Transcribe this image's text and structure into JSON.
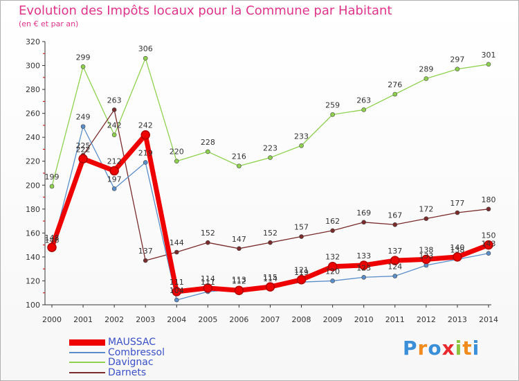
{
  "title": "Evolution des Impôts locaux pour la Commune par Habitant",
  "subtitle": "(en € et par an)",
  "logo_text": "Proxiti",
  "chart_data": {
    "type": "line",
    "x": [
      "2000",
      "2001",
      "2002",
      "2003",
      "2004",
      "2005",
      "2006",
      "2007",
      "2008",
      "2009",
      "2010",
      "2011",
      "2012",
      "2013",
      "2014"
    ],
    "ylim": [
      100,
      320
    ],
    "yticks": [
      100,
      120,
      140,
      160,
      180,
      200,
      220,
      240,
      260,
      280,
      300,
      320
    ],
    "grid": false,
    "legend_position": "bottom-left",
    "series": [
      {
        "name": "MAUSSAC",
        "color": "#ee0000",
        "values": [
          148,
          222,
          212,
          242,
          111,
          114,
          112,
          115,
          121,
          132,
          133,
          137,
          138,
          140,
          150
        ],
        "labels": [
          "148",
          "222",
          "212",
          "242",
          "111",
          "114",
          "112",
          "115",
          "121",
          "132",
          "133",
          "137",
          "138",
          "140",
          "150"
        ]
      },
      {
        "name": "Combressol",
        "color": "#5b8ec9",
        "values": [
          146,
          249,
          197,
          219,
          104,
          111,
          113,
          114,
          119,
          120,
          123,
          124,
          133,
          138,
          143
        ],
        "labels": [
          "146",
          "249",
          "197",
          "219",
          "104",
          "111",
          "113",
          "114",
          "119",
          "120",
          "123",
          "124",
          "133",
          "138",
          "143"
        ]
      },
      {
        "name": "Davignac",
        "color": "#8fd14f",
        "values": [
          199,
          299,
          242,
          306,
          220,
          228,
          216,
          223,
          233,
          259,
          263,
          276,
          289,
          297,
          301
        ],
        "labels": [
          "199",
          "299",
          "242",
          "306",
          "220",
          "228",
          "216",
          "223",
          "233",
          "259",
          "263",
          "276",
          "289",
          "297",
          "301"
        ]
      },
      {
        "name": "Darnets",
        "color": "#7a2b2b",
        "values": [
          147,
          225,
          263,
          137,
          144,
          152,
          147,
          152,
          157,
          162,
          169,
          167,
          172,
          177,
          180
        ],
        "labels": [
          "",
          "225",
          "263",
          "137",
          "144",
          "152",
          "147",
          "152",
          "157",
          "162",
          "169",
          "167",
          "172",
          "177",
          "180"
        ]
      }
    ]
  }
}
